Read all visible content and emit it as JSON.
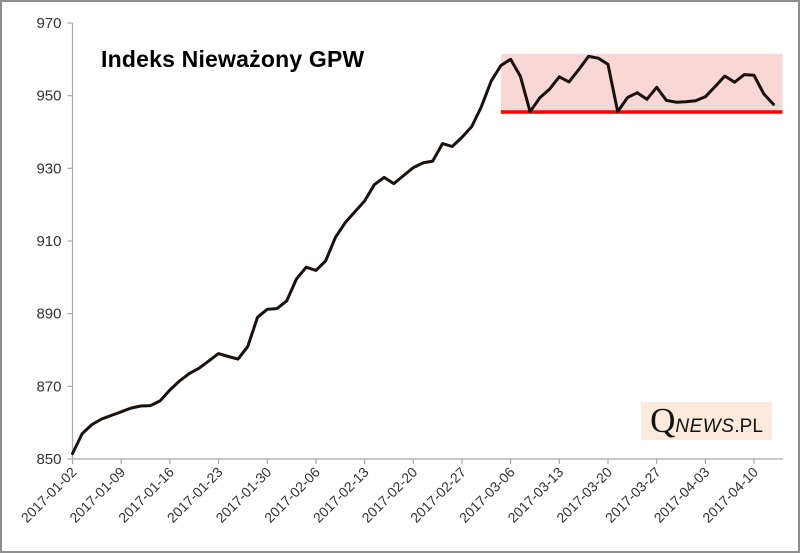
{
  "page": {
    "background": "#ffffff",
    "border_color": "#8e8e8e"
  },
  "chart_data": {
    "type": "line",
    "title": "Indeks Nieważony GPW",
    "xlabel": "",
    "ylabel": "",
    "ylim": [
      850,
      970
    ],
    "y_ticks": [
      850,
      870,
      890,
      910,
      930,
      950,
      970
    ],
    "x_tick_labels": [
      "2017-01-02",
      "2017-01-09",
      "2017-01-16",
      "2017-01-23",
      "2017-01-30",
      "2017-02-06",
      "2017-02-13",
      "2017-02-20",
      "2017-02-27",
      "2017-03-06",
      "2017-03-13",
      "2017-03-20",
      "2017-03-27",
      "2017-04-03",
      "2017-04-10"
    ],
    "x_tick_every_n_points": 5,
    "grid": false,
    "legend": false,
    "axis_color": "#a8a8a8",
    "tick_label_color": "#333333",
    "series": [
      {
        "name": "Indeks Nieważony GPW",
        "color": "#1a100d",
        "stroke_width": 3,
        "dates": [
          "2017-01-02",
          "2017-01-03",
          "2017-01-04",
          "2017-01-05",
          "2017-01-06",
          "2017-01-09",
          "2017-01-10",
          "2017-01-11",
          "2017-01-12",
          "2017-01-13",
          "2017-01-16",
          "2017-01-17",
          "2017-01-18",
          "2017-01-19",
          "2017-01-20",
          "2017-01-23",
          "2017-01-24",
          "2017-01-25",
          "2017-01-26",
          "2017-01-27",
          "2017-01-30",
          "2017-01-31",
          "2017-02-01",
          "2017-02-02",
          "2017-02-03",
          "2017-02-06",
          "2017-02-07",
          "2017-02-08",
          "2017-02-09",
          "2017-02-10",
          "2017-02-13",
          "2017-02-14",
          "2017-02-15",
          "2017-02-16",
          "2017-02-17",
          "2017-02-20",
          "2017-02-21",
          "2017-02-22",
          "2017-02-23",
          "2017-02-24",
          "2017-02-27",
          "2017-02-28",
          "2017-03-01",
          "2017-03-02",
          "2017-03-03",
          "2017-03-06",
          "2017-03-07",
          "2017-03-08",
          "2017-03-09",
          "2017-03-10",
          "2017-03-13",
          "2017-03-14",
          "2017-03-15",
          "2017-03-16",
          "2017-03-17",
          "2017-03-20",
          "2017-03-21",
          "2017-03-22",
          "2017-03-23",
          "2017-03-24",
          "2017-03-27",
          "2017-03-28",
          "2017-03-29",
          "2017-03-30",
          "2017-03-31",
          "2017-04-03",
          "2017-04-04",
          "2017-04-05",
          "2017-04-06",
          "2017-04-07",
          "2017-04-10",
          "2017-04-11",
          "2017-04-12"
        ],
        "values": [
          851.5,
          857.0,
          859.5,
          861.0,
          862.0,
          863.0,
          864.0,
          864.6,
          864.7,
          866.0,
          869.0,
          871.5,
          873.5,
          875.0,
          877.0,
          879.0,
          878.2,
          877.5,
          881.0,
          889.0,
          891.2,
          891.4,
          893.5,
          899.5,
          902.8,
          901.9,
          904.5,
          911.0,
          915.0,
          918.0,
          921.0,
          925.5,
          927.5,
          925.8,
          928.0,
          930.2,
          931.5,
          932.0,
          936.8,
          936.0,
          938.5,
          941.5,
          947.0,
          954.0,
          958.3,
          960.0,
          955.3,
          945.6,
          949.4,
          951.8,
          955.2,
          953.8,
          957.2,
          960.8,
          960.3,
          958.6,
          945.6,
          949.5,
          950.8,
          949.0,
          952.3,
          948.7,
          948.2,
          948.3,
          948.6,
          949.7,
          952.5,
          955.4,
          953.7,
          955.8,
          955.6,
          950.5,
          947.6
        ]
      }
    ],
    "annotations": {
      "channel_band": {
        "start_index": 44,
        "y_from": 945.5,
        "y_to": 961.5,
        "fill": "#f8d7d5"
      },
      "support_line": {
        "y": 945.5,
        "color": "#ff0000",
        "stroke_width": 3.5
      }
    }
  },
  "logo": {
    "q": "Q",
    "news": "NEWS",
    "pl": ".PL",
    "bg": "#fcebdd"
  }
}
